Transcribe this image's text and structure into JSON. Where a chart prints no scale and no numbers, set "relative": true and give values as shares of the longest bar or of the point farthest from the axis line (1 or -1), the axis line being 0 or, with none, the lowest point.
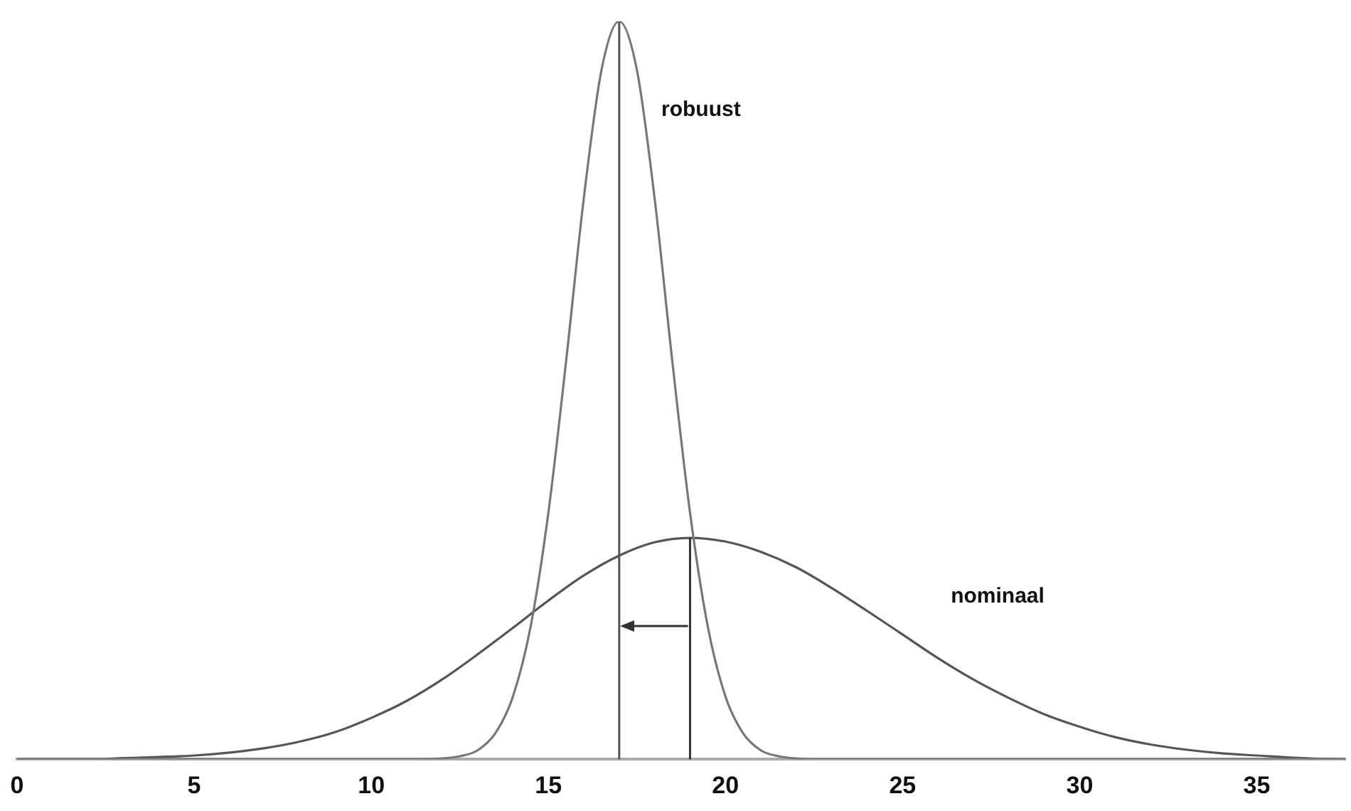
{
  "chart_data": {
    "type": "line",
    "relative": true,
    "xlim": [
      0,
      37.5
    ],
    "xticks": [
      0,
      5,
      10,
      15,
      20,
      25,
      30,
      35
    ],
    "grid": false,
    "legend": false,
    "marker": "none",
    "line_style": "solid",
    "series": [
      {
        "name": "robuust",
        "color": "#777777",
        "x": [
          0,
          11,
          12,
          12.5,
          13,
          13.5,
          14,
          14.5,
          15,
          15.5,
          16,
          16.5,
          17,
          17.5,
          18,
          18.5,
          19,
          19.5,
          20,
          20.5,
          21,
          21.5,
          22,
          23,
          37.5
        ],
        "values": [
          0,
          0,
          0.001,
          0.004,
          0.012,
          0.035,
          0.085,
          0.18,
          0.334,
          0.539,
          0.76,
          0.934,
          1,
          0.934,
          0.76,
          0.539,
          0.334,
          0.18,
          0.085,
          0.035,
          0.012,
          0.004,
          0.001,
          0,
          0
        ]
      },
      {
        "name": "nominaal",
        "color": "#555555",
        "x": [
          0,
          2,
          3,
          4,
          5,
          6,
          7,
          8,
          9,
          10,
          11,
          12,
          13,
          14,
          15,
          16,
          17,
          18,
          19,
          20,
          21,
          22,
          23,
          24,
          25,
          26,
          27,
          28,
          29,
          30,
          31,
          32,
          33,
          34,
          35,
          36.5,
          37.5
        ],
        "values": [
          0,
          0,
          0.0015,
          0.003,
          0.005,
          0.009,
          0.015,
          0.024,
          0.037,
          0.056,
          0.079,
          0.108,
          0.142,
          0.178,
          0.215,
          0.249,
          0.276,
          0.294,
          0.3,
          0.295,
          0.281,
          0.26,
          0.232,
          0.201,
          0.169,
          0.137,
          0.108,
          0.083,
          0.061,
          0.044,
          0.03,
          0.02,
          0.013,
          0.008,
          0.005,
          0.001,
          0
        ]
      }
    ],
    "ref_lines": [
      {
        "axis": "x",
        "value": 17,
        "color": "#555555"
      },
      {
        "axis": "x",
        "value": 19,
        "color": "#333333"
      }
    ]
  }
}
